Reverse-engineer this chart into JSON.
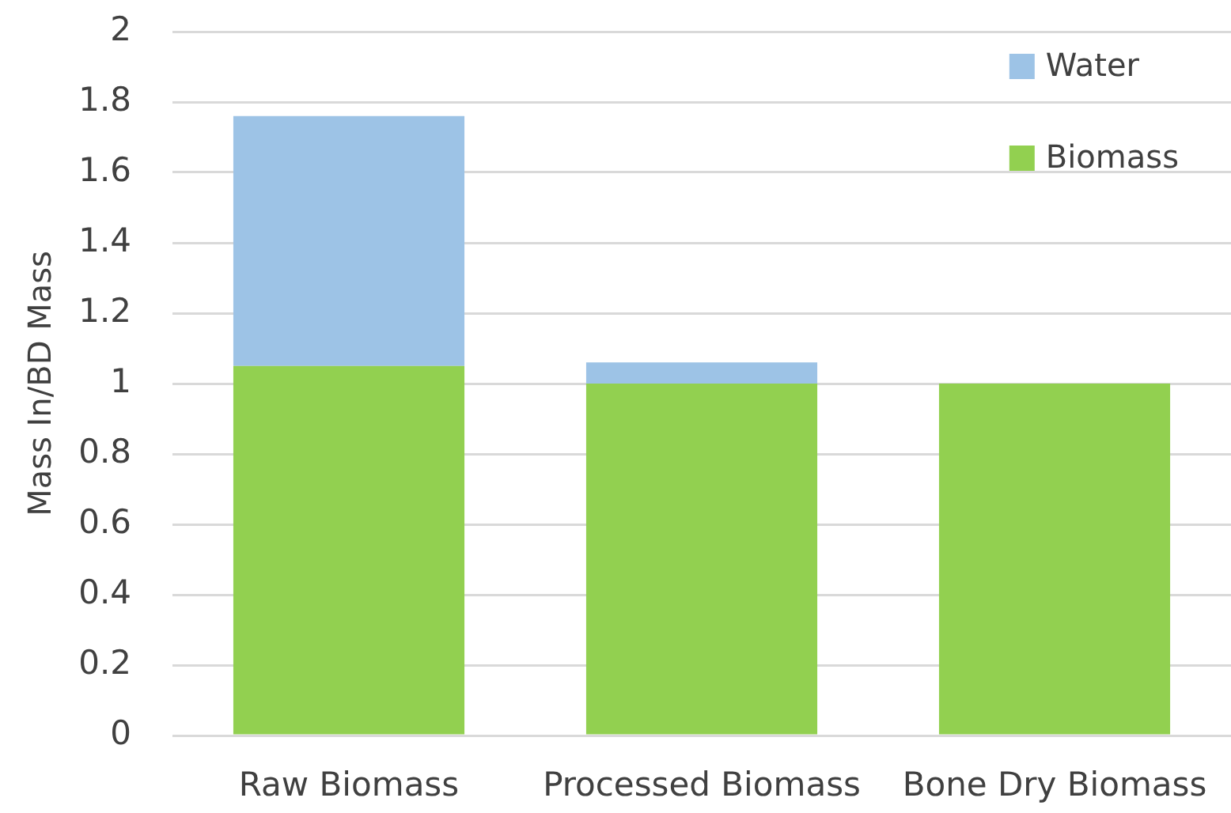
{
  "chart_data": {
    "type": "bar",
    "ylabel": "Mass In/BD Mass",
    "categories": [
      "Raw Biomass",
      "Processed Biomass",
      "Bone Dry Biomass"
    ],
    "stacked": true,
    "series": [
      {
        "name": "Biomass",
        "color": "#92d050",
        "values": [
          1.05,
          1.0,
          1.0
        ]
      },
      {
        "name": "Water",
        "color": "#9dc3e6",
        "values": [
          0.71,
          0.06,
          null
        ]
      }
    ],
    "ylim": [
      0,
      2
    ],
    "yticks": [
      0,
      0.2,
      0.4,
      0.6,
      0.8,
      1,
      1.2,
      1.4,
      1.6,
      1.8,
      2
    ],
    "grid": "y",
    "legend": "top right"
  }
}
